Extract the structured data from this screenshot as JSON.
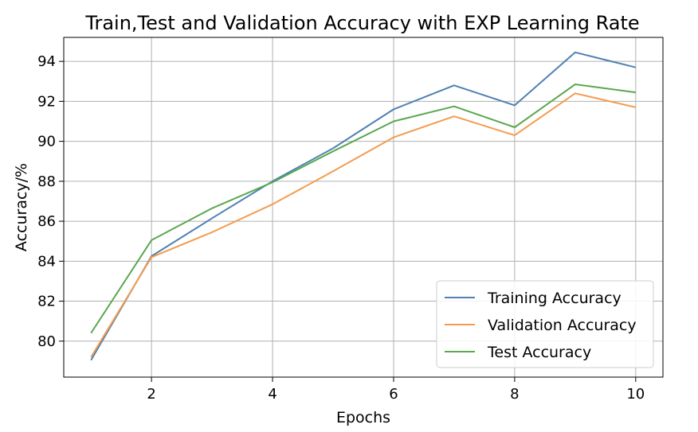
{
  "chart_data": {
    "type": "line",
    "title": "Train,Test and Validation Accuracy with EXP Learning Rate",
    "xlabel": "Epochs",
    "ylabel": "Accuracy/%",
    "xlim": [
      0.55,
      10.45
    ],
    "ylim": [
      78.2,
      95.2
    ],
    "xticks": [
      2,
      4,
      6,
      8,
      10
    ],
    "yticks": [
      80,
      82,
      84,
      86,
      88,
      90,
      92,
      94
    ],
    "grid": true,
    "legend_position": "lower-right",
    "x": [
      1,
      2,
      3,
      4,
      5,
      6,
      7,
      8,
      9,
      10
    ],
    "series": [
      {
        "name": "Training Accuracy",
        "color": "#4f81b3",
        "values": [
          79.05,
          84.25,
          86.15,
          88.0,
          89.65,
          91.6,
          92.8,
          91.8,
          94.45,
          93.7
        ]
      },
      {
        "name": "Validation Accuracy",
        "color": "#f39c4f",
        "values": [
          79.2,
          84.2,
          85.45,
          86.85,
          88.5,
          90.2,
          91.25,
          90.3,
          92.4,
          91.7
        ]
      },
      {
        "name": "Test Accuracy",
        "color": "#5aa84f",
        "values": [
          80.4,
          85.05,
          86.65,
          87.95,
          89.5,
          91.0,
          91.75,
          90.7,
          92.85,
          92.45
        ]
      }
    ]
  }
}
